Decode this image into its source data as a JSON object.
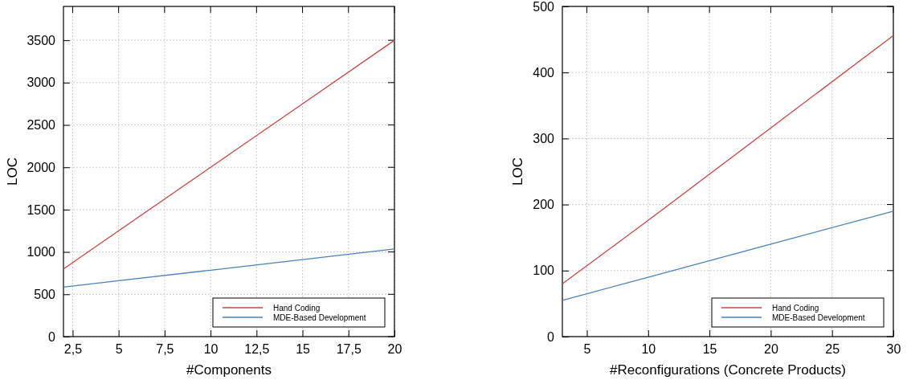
{
  "chart_data": [
    {
      "type": "line",
      "xlabel": "#Components",
      "ylabel": "LOC",
      "x": [
        2,
        5,
        10,
        15,
        20
      ],
      "series": [
        {
          "name": "Hand Coding",
          "color": "#c9473f",
          "values": [
            800,
            1250,
            2000,
            2750,
            3500
          ]
        },
        {
          "name": "MDE-Based Development",
          "color": "#4a82bb",
          "values": [
            585,
            660,
            785,
            910,
            1035
          ]
        }
      ],
      "xlim": [
        2,
        20
      ],
      "xticks": [
        {
          "value": 2.5,
          "label": "2,5"
        },
        5,
        {
          "value": 7.5,
          "label": "7,5"
        },
        10,
        {
          "value": 12.5,
          "label": "12,5"
        },
        15,
        {
          "value": 17.5,
          "label": "17,5"
        },
        20
      ],
      "ylim": [
        0,
        3900
      ],
      "yticks": [
        0,
        500,
        1000,
        1500,
        2000,
        2500,
        3000,
        3500
      ],
      "grid": true,
      "legend": "bottom right",
      "marker": "none",
      "line_style": "solid"
    },
    {
      "type": "line",
      "xlabel": "#Reconfigurations (Concrete Products)",
      "ylabel": "LOC",
      "x": [
        3,
        10,
        20,
        30
      ],
      "series": [
        {
          "name": "Hand Coding",
          "color": "#c9473f",
          "values": [
            80,
            176,
            316,
            456
          ]
        },
        {
          "name": "MDE-Based Development",
          "color": "#4a82bb",
          "values": [
            55,
            90,
            140,
            190
          ]
        }
      ],
      "xlim": [
        3,
        30
      ],
      "xticks": [
        5,
        10,
        15,
        20,
        25,
        30
      ],
      "ylim": [
        0,
        500
      ],
      "yticks": [
        0,
        100,
        200,
        300,
        400,
        500
      ],
      "grid": true,
      "legend": "bottom right",
      "marker": "none",
      "line_style": "solid"
    }
  ]
}
